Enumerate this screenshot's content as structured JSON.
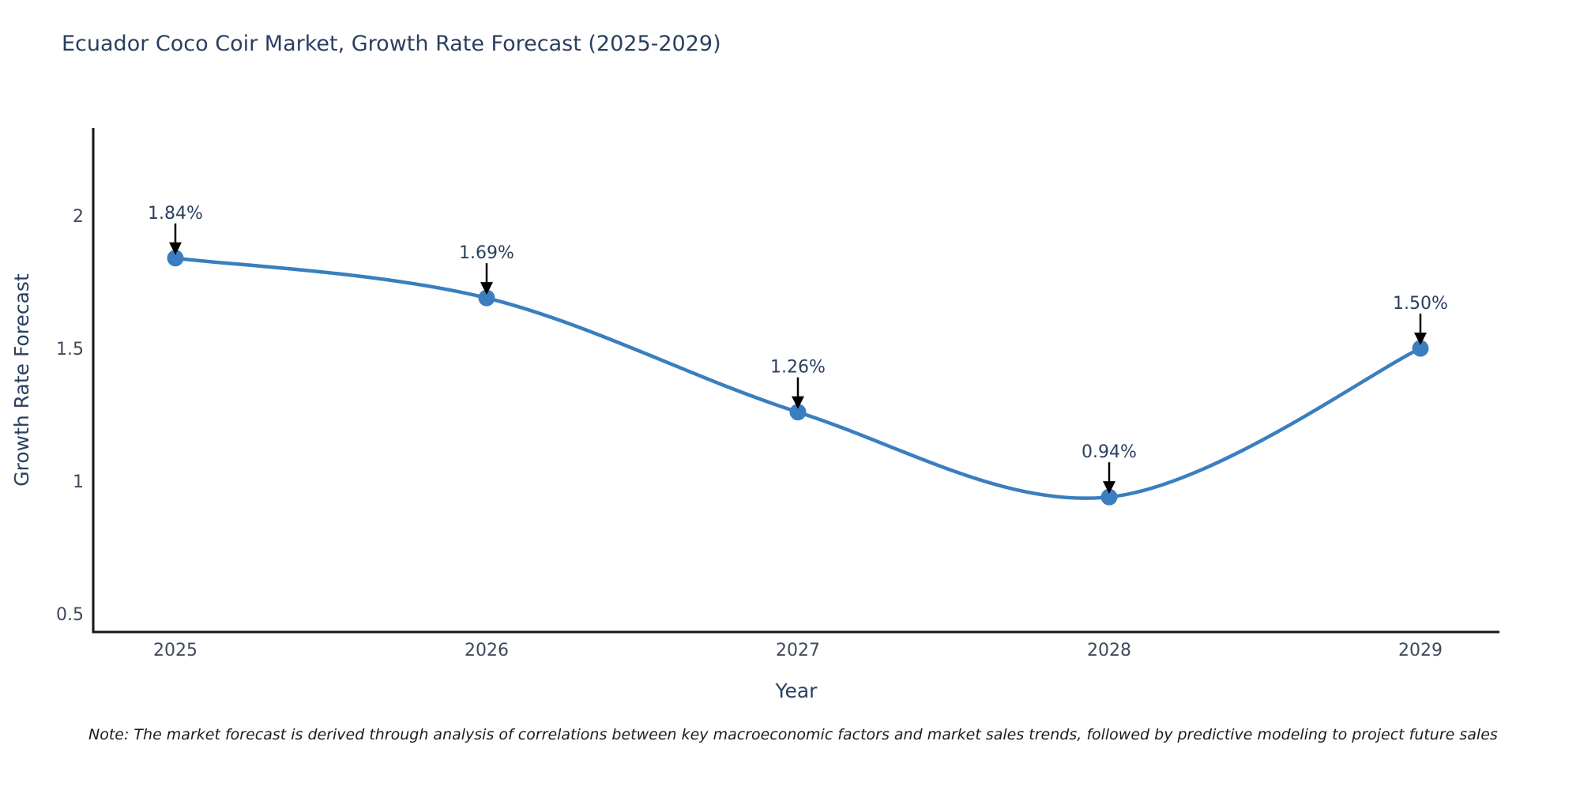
{
  "title": {
    "text": "Ecuador Coco Coir Market, Growth Rate Forecast (2025-2029)",
    "color": "#2a3f5f"
  },
  "note": {
    "text": "Note: The market forecast is derived through analysis of correlations between key macroeconomic factors and market sales trends, followed by predictive modeling to project future sales"
  },
  "chart_data": {
    "type": "line",
    "line_shape": "spline",
    "title": "Ecuador Coco Coir Market, Growth Rate Forecast (2025-2029)",
    "xlabel": "Year",
    "ylabel": "Growth Rate Forecast",
    "x": [
      2025,
      2026,
      2027,
      2028,
      2029
    ],
    "x_tick_labels": [
      "2025",
      "2026",
      "2027",
      "2028",
      "2029"
    ],
    "series": [
      {
        "name": "Growth Rate Forecast",
        "values": [
          1.84,
          1.69,
          1.26,
          0.94,
          1.5
        ]
      }
    ],
    "point_labels": [
      "1.84%",
      "1.69%",
      "1.26%",
      "0.94%",
      "1.50%"
    ],
    "y_ticks": [
      0.5,
      1,
      1.5,
      2
    ],
    "y_tick_labels": [
      "0.5",
      "1",
      "1.5",
      "2"
    ],
    "ylim": [
      0.43,
      2.33
    ],
    "xlim": [
      2024.74,
      2029.25
    ],
    "grid": false,
    "legend": false,
    "colors": {
      "line": "#3a7ebf",
      "marker": "#3a7ebf",
      "axis": "#161616",
      "tick_label": "#3f4a5a",
      "axis_title": "#2a3f5f",
      "annotation_text": "#2a3f5f",
      "arrow": "#000000"
    }
  }
}
